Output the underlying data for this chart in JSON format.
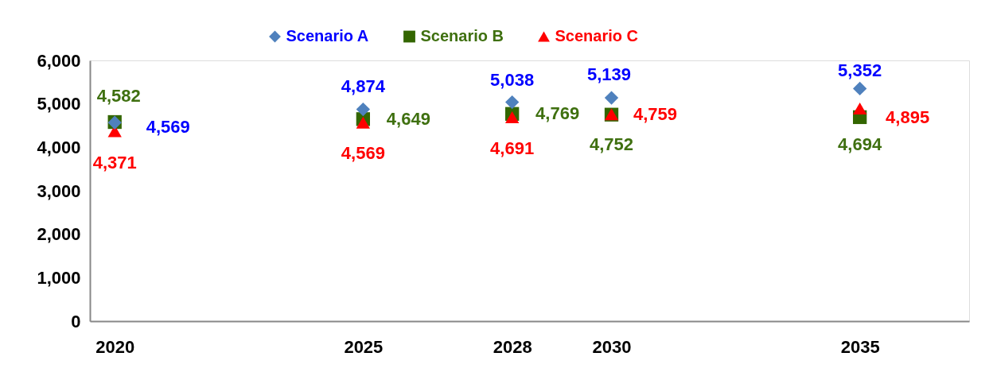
{
  "chart_data": {
    "type": "scatter",
    "x": [
      2020,
      2025,
      2028,
      2030,
      2035
    ],
    "series": [
      {
        "name": "Scenario A",
        "color": "#4f81bd",
        "marker": "diamond",
        "values": [
          4569,
          4874,
          5038,
          5139,
          5352
        ],
        "value_labels": [
          "4,569",
          "4,874",
          "5,038",
          "5,139",
          "5,352"
        ]
      },
      {
        "name": "Scenario B",
        "color": "#336600",
        "marker": "square",
        "values": [
          4582,
          4649,
          4769,
          4752,
          4694
        ],
        "value_labels": [
          "4,582",
          "4,649",
          "4,769",
          "4,752",
          "4,694"
        ]
      },
      {
        "name": "Scenario C",
        "color": "#ff0000",
        "marker": "triangle",
        "values": [
          4371,
          4569,
          4691,
          4759,
          4895
        ],
        "value_labels": [
          "4,371",
          "4,569",
          "4,691",
          "4,759",
          "4,895"
        ]
      }
    ],
    "xlim": [
      2019.5,
      2037.2
    ],
    "xticks": [
      2020,
      2025,
      2028,
      2030,
      2035
    ],
    "ylim": [
      0,
      6000
    ],
    "yticks": [
      0,
      {
        "value": 1000,
        "label": "1,000"
      },
      {
        "value": 2000,
        "label": "2,000"
      },
      {
        "value": 3000,
        "label": "3,000"
      },
      {
        "value": 4000,
        "label": "4,000"
      },
      {
        "value": 5000,
        "label": "5,000"
      },
      {
        "value": 6000,
        "label": "6,000"
      }
    ],
    "grid": false,
    "legend": "top"
  }
}
